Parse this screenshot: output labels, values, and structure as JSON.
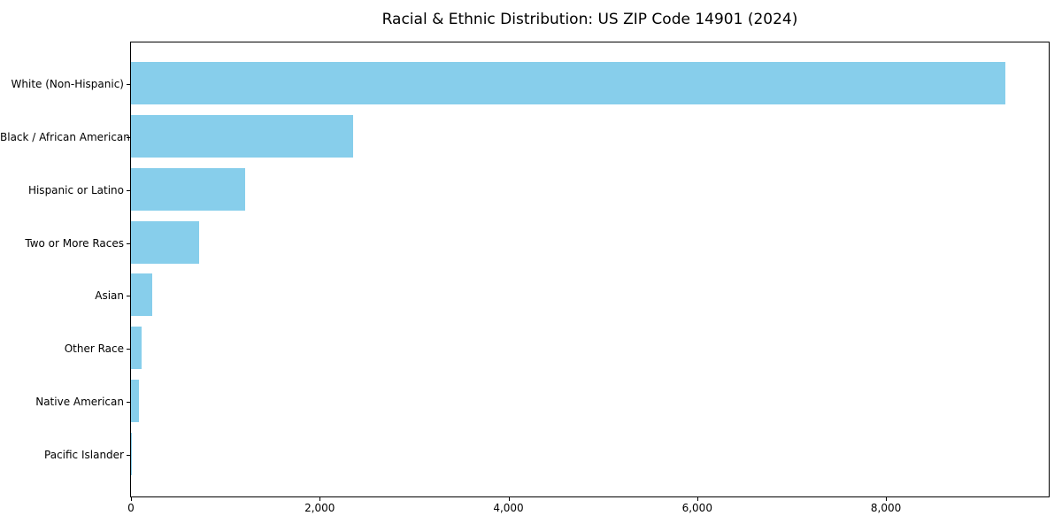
{
  "chart_data": {
    "type": "bar",
    "orientation": "horizontal",
    "title": "Racial & Ethnic Distribution: US ZIP Code 14901 (2024)",
    "categories": [
      "White (Non-Hispanic)",
      "Black / African American",
      "Hispanic or Latino",
      "Two or More Races",
      "Asian",
      "Other Race",
      "Native American",
      "Pacific Islander"
    ],
    "values": [
      9265,
      2354,
      1210,
      722,
      222,
      113,
      88,
      5
    ],
    "bar_color": "#87CEEB",
    "frame_color": "#000000",
    "xlabel": "",
    "ylabel": "",
    "xlim": [
      0,
      9725
    ],
    "xticks": {
      "values": [
        0,
        2000,
        4000,
        6000,
        8000
      ],
      "labels": [
        "0",
        "2,000",
        "4,000",
        "6,000",
        "8,000"
      ]
    },
    "grid": false,
    "legend_position": "none"
  }
}
